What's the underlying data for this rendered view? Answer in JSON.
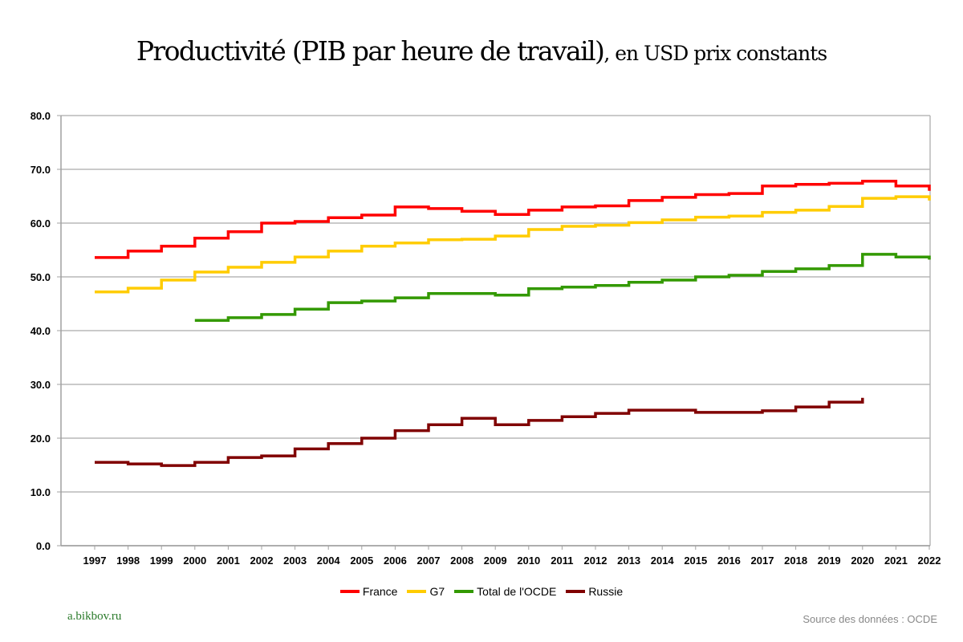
{
  "chart_data": {
    "type": "line",
    "step": true,
    "title": "Productivité (PIB par heure de travail)",
    "subtitle": ", en USD prix constants",
    "xlabel": "",
    "ylabel": "",
    "ylim": [
      0,
      80
    ],
    "yticks": [
      "0.0",
      "10.0",
      "20.0",
      "30.0",
      "40.0",
      "50.0",
      "60.0",
      "70.0",
      "80.0"
    ],
    "ytick_values": [
      0,
      10,
      20,
      30,
      40,
      50,
      60,
      70,
      80
    ],
    "grid": true,
    "legend_position": "bottom",
    "x": [
      1997,
      1998,
      1999,
      2000,
      2001,
      2002,
      2003,
      2004,
      2005,
      2006,
      2007,
      2008,
      2009,
      2010,
      2011,
      2012,
      2013,
      2014,
      2015,
      2016,
      2017,
      2018,
      2019,
      2020,
      2021,
      2022
    ],
    "xtick_labels": [
      "1997",
      "1998",
      "1999",
      "2000",
      "2001",
      "2002",
      "2003",
      "2004",
      "2005",
      "2006",
      "2007",
      "2008",
      "2009",
      "2010",
      "2011",
      "2012",
      "2013",
      "2014",
      "2015",
      "2016",
      "2017",
      "2018",
      "2019",
      "2020",
      "2021",
      "2022"
    ],
    "series": [
      {
        "name": "France",
        "color": "#ff0000",
        "values": [
          53.6,
          54.8,
          55.7,
          57.2,
          58.4,
          60.0,
          60.3,
          61.0,
          61.5,
          63.0,
          62.7,
          62.2,
          61.6,
          62.4,
          63.0,
          63.2,
          64.2,
          64.8,
          65.3,
          65.5,
          66.9,
          67.2,
          67.4,
          67.8,
          66.9,
          66.0
        ]
      },
      {
        "name": "G7",
        "color": "#ffcc00",
        "values": [
          47.2,
          47.9,
          49.4,
          50.9,
          51.8,
          52.7,
          53.7,
          54.8,
          55.7,
          56.3,
          56.9,
          57.0,
          57.6,
          58.8,
          59.4,
          59.6,
          60.1,
          60.6,
          61.1,
          61.3,
          62.0,
          62.4,
          63.1,
          64.6,
          64.9,
          64.2
        ]
      },
      {
        "name": "Total de l'OCDE",
        "color": "#339900",
        "values": [
          null,
          null,
          null,
          41.9,
          42.4,
          43.0,
          44.0,
          45.2,
          45.5,
          46.1,
          46.9,
          46.9,
          46.6,
          47.8,
          48.1,
          48.4,
          49.0,
          49.4,
          50.0,
          50.3,
          51.0,
          51.5,
          52.1,
          54.2,
          53.7,
          53.2
        ]
      },
      {
        "name": "Russie",
        "color": "#800000",
        "values": [
          15.5,
          15.2,
          14.9,
          15.5,
          16.4,
          16.7,
          18.0,
          19.0,
          20.0,
          21.4,
          22.5,
          23.7,
          22.5,
          23.3,
          24.0,
          24.6,
          25.2,
          25.2,
          24.8,
          24.8,
          25.1,
          25.8,
          26.7,
          27.5,
          null,
          null
        ]
      }
    ]
  },
  "header": {
    "title_main": "Productivité (PIB par heure de travail)",
    "title_sub": ", en USD prix constants"
  },
  "legend": {
    "items": [
      {
        "label": "France",
        "color": "#ff0000"
      },
      {
        "label": "G7",
        "color": "#ffcc00"
      },
      {
        "label": "Total de l'OCDE",
        "color": "#339900"
      },
      {
        "label": "Russie",
        "color": "#800000"
      }
    ]
  },
  "footer": {
    "credit": "a.bikbov.ru",
    "source": "Source des données : OCDE"
  }
}
